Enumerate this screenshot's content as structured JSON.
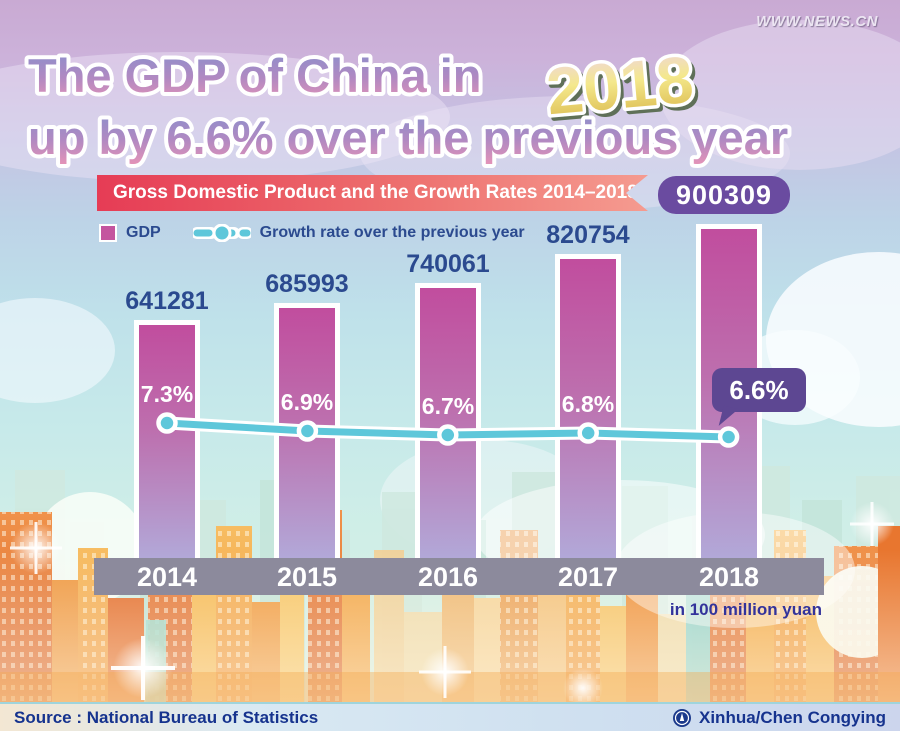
{
  "watermark": "WWW.NEWS.CN",
  "title": {
    "line1_prefix": "The GDP of China in",
    "year": "2018",
    "line2": "up by 6.6% over the previous year"
  },
  "banner": {
    "label": "Gross Domestic Product and the Growth Rates 2014–2018"
  },
  "highlight_value": "900309",
  "legend": {
    "gdp_label": "GDP",
    "growth_label": "Growth rate over the previous year"
  },
  "unit_note": "in 100 million yuan",
  "footer": {
    "source": "Source : National Bureau of Statistics",
    "credit": "Xinhua/Chen Congying"
  },
  "colors": {
    "bar_top": "#c14d9e",
    "bar_mid": "#bd6fae",
    "bar_bottom": "#b2a8d8",
    "line": "#5ec7da",
    "banner_left": "#e63c55",
    "banner_right": "#f59b90",
    "badge_bg": "#6a4ba0",
    "bubble_bg": "#5d4792",
    "label_blue": "#2b4a8f",
    "axis_bar": "#8c8a9c"
  },
  "chart_data": {
    "type": "bar",
    "title": "Gross Domestic Product and the Growth Rates 2014–2018",
    "categories": [
      "2014",
      "2015",
      "2016",
      "2017",
      "2018"
    ],
    "series": [
      {
        "name": "GDP",
        "type": "bar",
        "unit": "100 million yuan",
        "values": [
          641281,
          685993,
          740061,
          820754,
          900309
        ],
        "color": "#c14d9e"
      },
      {
        "name": "Growth rate over the previous year",
        "type": "line",
        "unit": "%",
        "values": [
          7.3,
          6.9,
          6.7,
          6.8,
          6.6
        ],
        "color": "#5ec7da"
      }
    ],
    "value_labels": [
      "641281",
      "685993",
      "740061",
      "820754",
      "900309"
    ],
    "growth_labels": [
      "7.3%",
      "6.9%",
      "6.7%",
      "6.8%",
      "6.6%"
    ],
    "legend_position": "top-left",
    "grid": false,
    "ylim_bar": [
      0,
      950000
    ],
    "note": "2018 bar value shown in purple badge; 2018 growth rate shown in speech bubble"
  }
}
